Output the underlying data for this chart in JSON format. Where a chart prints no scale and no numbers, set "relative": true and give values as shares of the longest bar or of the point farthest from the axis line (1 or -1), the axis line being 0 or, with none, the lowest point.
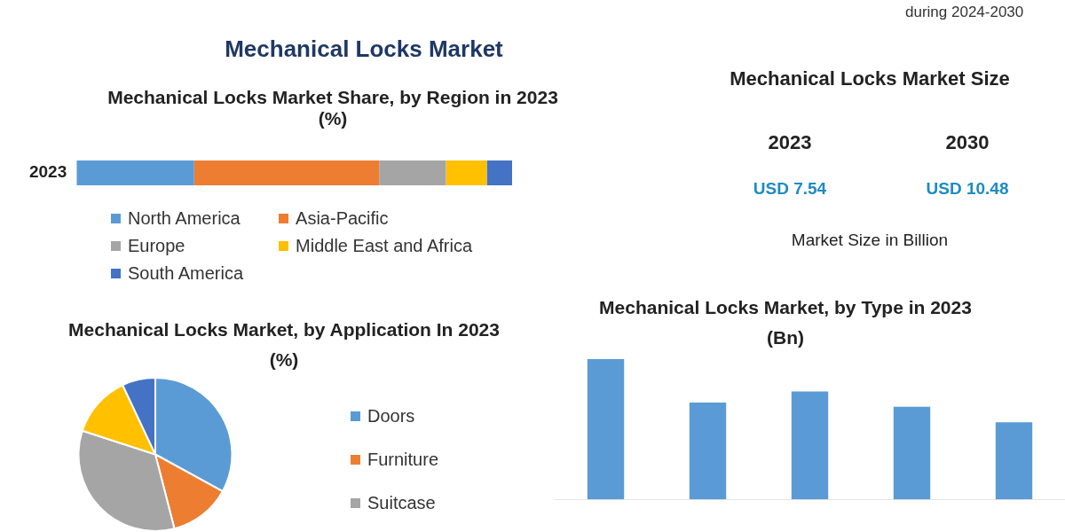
{
  "chart_data": [
    {
      "type": "bar",
      "title": "Mechanical Locks Market",
      "subtitle": "Mechanical Locks Market Share, by Region in 2023 (%)",
      "orientation": "horizontal",
      "stacked": true,
      "relative": true,
      "categories": [
        "2023"
      ],
      "legend": "bottom",
      "series": [
        {
          "name": "North America",
          "color": "#5b9bd5",
          "values": [
            0.27
          ]
        },
        {
          "name": "Asia-Pacific",
          "color": "#ed7d31",
          "values": [
            0.425
          ]
        },
        {
          "name": "Europe",
          "color": "#a5a5a5",
          "values": [
            0.153
          ]
        },
        {
          "name": "Middle East and Africa",
          "color": "#ffc000",
          "values": [
            0.094
          ]
        },
        {
          "name": "South America",
          "color": "#4472c4",
          "values": [
            0.058
          ]
        }
      ]
    },
    {
      "type": "other",
      "title": "Mechanical Locks Market Size",
      "categories": [
        "2023",
        "2030"
      ],
      "value_labels": [
        "USD 7.54",
        "USD 10.48"
      ],
      "annotations": [
        "during 2024-2030",
        "Market Size in Billion"
      ]
    },
    {
      "type": "pie",
      "title": "Mechanical Locks Market, by Application In 2023 (%)",
      "categories": [
        "Doors",
        "Furniture",
        "Suitcase",
        null,
        null
      ],
      "values": [
        33,
        13,
        34,
        13,
        7
      ],
      "colors": [
        "#5b9bd5",
        "#ed7d31",
        "#a5a5a5",
        "#ffc000",
        "#4472c4"
      ],
      "legend": "right"
    },
    {
      "type": "bar",
      "title": "Mechanical Locks Market, by Type in 2023 (Bn)",
      "relative": true,
      "categories": [
        null,
        null,
        null,
        null,
        null
      ],
      "values": [
        1,
        0.69,
        0.77,
        0.66,
        0.55
      ],
      "color": "#5b9bd5"
    }
  ]
}
